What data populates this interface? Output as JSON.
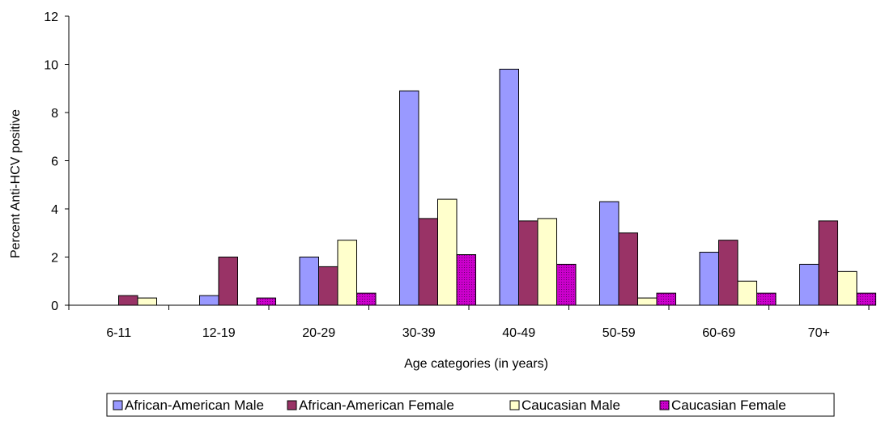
{
  "chart_data": {
    "type": "bar",
    "title": "",
    "xlabel": "Age categories (in years)",
    "ylabel": "Percent Anti-HCV positive",
    "ylim": [
      0,
      12
    ],
    "yticks": [
      "0",
      "2",
      "4",
      "6",
      "8",
      "10",
      "12"
    ],
    "grid": false,
    "legend_position": "bottom",
    "categories": [
      "6-11",
      "12-19",
      "20-29",
      "30-39",
      "40-49",
      "50-59",
      "60-69",
      "70+"
    ],
    "series": [
      {
        "name": "African-American Male",
        "color": "#9999ff",
        "values": [
          0,
          0.4,
          2.0,
          8.9,
          9.8,
          4.3,
          2.2,
          1.7
        ]
      },
      {
        "name": "African-American Female",
        "color": "#993366",
        "values": [
          0.4,
          2.0,
          1.6,
          3.6,
          3.5,
          3.0,
          2.7,
          3.5
        ]
      },
      {
        "name": "Caucasian Male",
        "color": "#ffffcc",
        "values": [
          0.3,
          0,
          2.7,
          4.4,
          3.6,
          0.3,
          1.0,
          1.4
        ]
      },
      {
        "name": "Caucasian Female",
        "color": "#cc00cc",
        "values": [
          0,
          0.3,
          0.5,
          2.1,
          1.7,
          0.5,
          0.5,
          0.5
        ]
      }
    ]
  }
}
